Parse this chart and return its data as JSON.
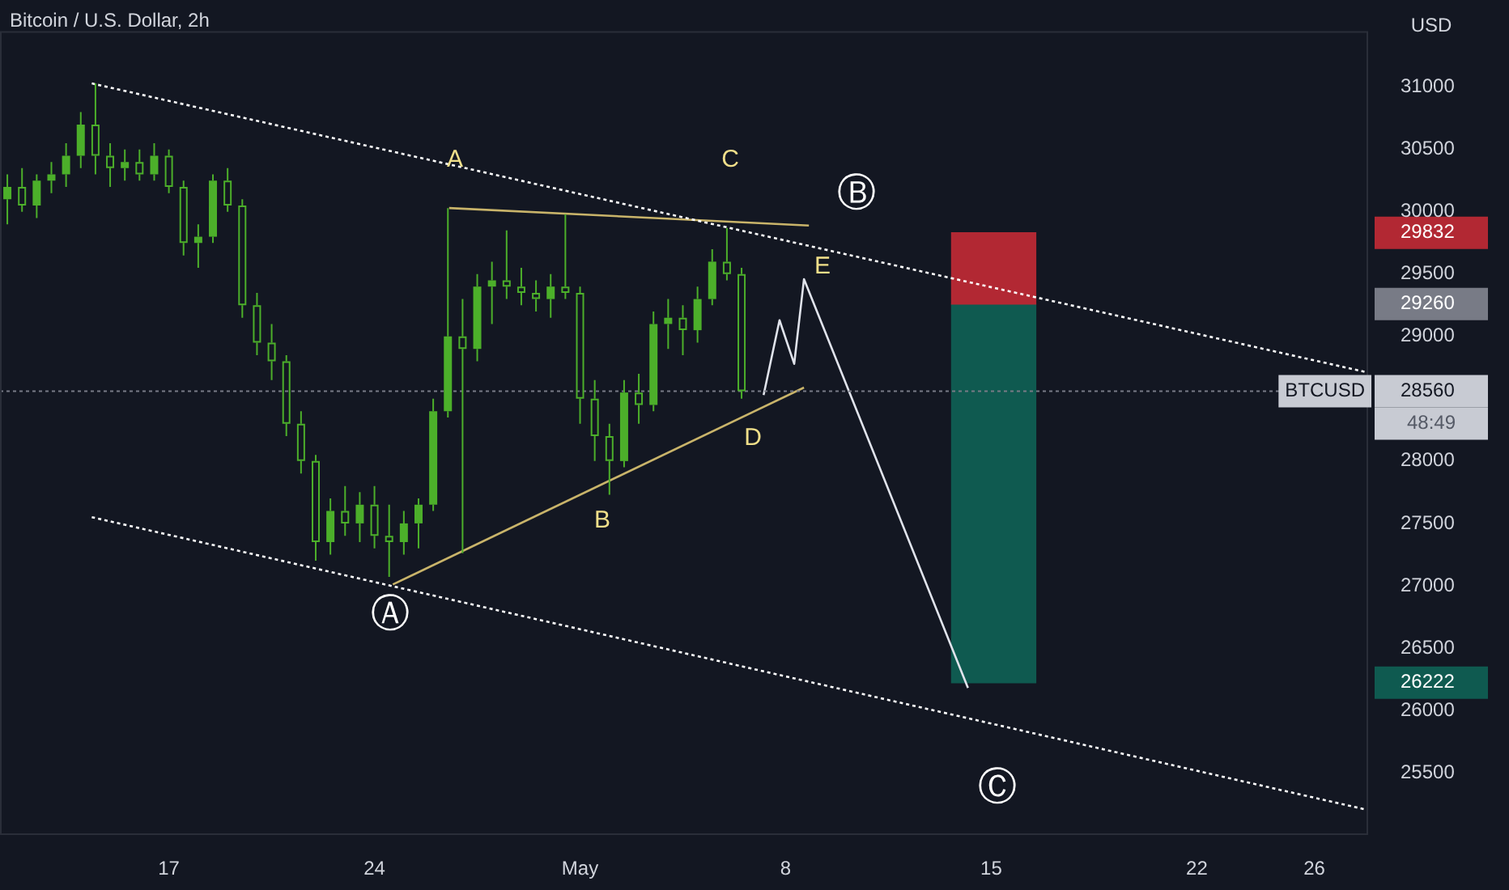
{
  "chart_data": {
    "type": "candlestick",
    "title": "Bitcoin / U.S. Dollar, 2h",
    "ylabel": "USD",
    "color": "#4caf2a",
    "x": [
      "--04-11T12:00",
      "--04-12T00:00",
      "--04-12T12:00",
      "--04-13T00:00",
      "--04-13T12:00",
      "--04-14T00:00",
      "--04-14T12:00",
      "--04-15T00:00",
      "--04-15T12:00",
      "--04-16T00:00",
      "--04-16T12:00",
      "--04-17T00:00",
      "--04-17T12:00",
      "--04-18T00:00",
      "--04-18T12:00",
      "--04-19T00:00",
      "--04-19T12:00",
      "--04-20T00:00",
      "--04-20T12:00",
      "--04-21T00:00",
      "--04-21T12:00",
      "--04-22T00:00",
      "--04-22T12:00",
      "--04-23T00:00",
      "--04-23T12:00",
      "--04-24T00:00",
      "--04-24T12:00",
      "--04-25T00:00",
      "--04-25T12:00",
      "--04-26T00:00",
      "--04-26T12:00",
      "--04-27T00:00",
      "--04-27T12:00",
      "--04-28T00:00",
      "--04-28T12:00",
      "--04-29T00:00",
      "--04-29T12:00",
      "--04-30T00:00",
      "--04-30T12:00",
      "--05-01T00:00",
      "--05-01T12:00",
      "--05-02T00:00",
      "--05-02T12:00",
      "--05-03T00:00",
      "--05-03T12:00",
      "--05-04T00:00",
      "--05-04T12:00",
      "--05-05T00:00",
      "--05-05T12:00",
      "--05-06T00:00",
      "--05-06T12:00"
    ],
    "ohlc": [
      [
        30100,
        30300,
        29900,
        30200
      ],
      [
        30200,
        30350,
        30000,
        30050
      ],
      [
        30050,
        30300,
        29950,
        30250
      ],
      [
        30250,
        30400,
        30150,
        30300
      ],
      [
        30300,
        30550,
        30200,
        30450
      ],
      [
        30450,
        30800,
        30350,
        30700
      ],
      [
        30700,
        31030,
        30300,
        30450
      ],
      [
        30450,
        30550,
        30200,
        30350
      ],
      [
        30350,
        30500,
        30250,
        30400
      ],
      [
        30400,
        30500,
        30250,
        30300
      ],
      [
        30300,
        30550,
        30250,
        30450
      ],
      [
        30450,
        30500,
        30150,
        30200
      ],
      [
        30200,
        30250,
        29650,
        29750
      ],
      [
        29750,
        29900,
        29550,
        29800
      ],
      [
        29800,
        30300,
        29750,
        30250
      ],
      [
        30250,
        30350,
        30000,
        30050
      ],
      [
        30050,
        30100,
        29150,
        29250
      ],
      [
        29250,
        29350,
        28850,
        28950
      ],
      [
        28950,
        29100,
        28650,
        28800
      ],
      [
        28800,
        28850,
        28200,
        28300
      ],
      [
        28300,
        28400,
        27900,
        28000
      ],
      [
        28000,
        28050,
        27200,
        27350
      ],
      [
        27350,
        27700,
        27250,
        27600
      ],
      [
        27600,
        27800,
        27400,
        27500
      ],
      [
        27500,
        27750,
        27350,
        27650
      ],
      [
        27650,
        27800,
        27300,
        27400
      ],
      [
        27400,
        27650,
        27070,
        27350
      ],
      [
        27350,
        27600,
        27250,
        27500
      ],
      [
        27500,
        27700,
        27300,
        27650
      ],
      [
        27650,
        28500,
        27600,
        28400
      ],
      [
        28400,
        30030,
        28350,
        29000
      ],
      [
        29000,
        29300,
        27260,
        28900
      ],
      [
        28900,
        29500,
        28800,
        29400
      ],
      [
        29400,
        29600,
        29100,
        29450
      ],
      [
        29450,
        29850,
        29300,
        29400
      ],
      [
        29400,
        29550,
        29250,
        29350
      ],
      [
        29350,
        29450,
        29200,
        29300
      ],
      [
        29300,
        29500,
        29150,
        29400
      ],
      [
        29400,
        29980,
        29300,
        29350
      ],
      [
        29350,
        29400,
        28300,
        28500
      ],
      [
        28500,
        28650,
        28000,
        28200
      ],
      [
        28200,
        28300,
        27730,
        28000
      ],
      [
        28000,
        28650,
        27950,
        28550
      ],
      [
        28550,
        28700,
        28300,
        28450
      ],
      [
        28450,
        29200,
        28400,
        29100
      ],
      [
        29100,
        29300,
        28900,
        29150
      ],
      [
        29150,
        29250,
        28850,
        29050
      ],
      [
        29050,
        29400,
        28950,
        29300
      ],
      [
        29300,
        29700,
        29250,
        29600
      ],
      [
        29600,
        29870,
        29450,
        29500
      ],
      [
        29500,
        29550,
        28500,
        28560
      ]
    ],
    "series": [
      {
        "type": "line",
        "color": "#ffffff",
        "line_style": "dotted",
        "x": [
          "--04-14T09:00",
          "--05-27T20:00"
        ],
        "values": [
          31030,
          28710
        ]
      },
      {
        "type": "line",
        "color": "#ffffff",
        "line_style": "dotted",
        "x": [
          "--04-14T09:00",
          "--05-27T20:00"
        ],
        "values": [
          27550,
          25200
        ]
      },
      {
        "type": "line",
        "color": "#c9b46a",
        "line_style": "solid",
        "x": [
          "--04-26T13:00",
          "--05-08T19:00"
        ],
        "values": [
          30030,
          29890
        ]
      },
      {
        "type": "line",
        "color": "#c9b46a",
        "line_style": "solid",
        "x": [
          "--04-24T15:00",
          "--05-08T15:00"
        ],
        "values": [
          27010,
          28590
        ]
      },
      {
        "type": "line",
        "color": "#e0e3eb",
        "line_style": "solid",
        "x": [
          "--05-07T06:00",
          "--05-07T19:00",
          "--05-08T07:00",
          "--05-08T15:00",
          "--05-14T05:00"
        ],
        "values": [
          28530,
          29130,
          28780,
          29460,
          26180
        ]
      },
      {
        "type": "bar",
        "colors": [
          "#0f5a50",
          "#b22833"
        ],
        "x": [
          "--05-15T02:00",
          "--05-15T02:00"
        ],
        "base": [
          26222,
          29260
        ],
        "values": [
          3038,
          572
        ]
      }
    ],
    "ref_lines": [
      {
        "axis": "y",
        "value": 28560,
        "label": "BTCUSD",
        "color": "#787b86",
        "line_style": "dotted"
      }
    ],
    "annotations": [
      "A",
      "C",
      "B",
      "D",
      "E",
      "Ⓐ",
      "Ⓑ",
      "Ⓒ",
      "48:49"
    ],
    "xlim": [
      "--04-11T06:00",
      "--05-27T20:00"
    ],
    "xticks": [
      {
        "value": "--04-17",
        "label": "17"
      },
      {
        "value": "--04-24",
        "label": "24"
      },
      {
        "value": "--05-01",
        "label": "May"
      },
      {
        "value": "--05-08",
        "label": "8"
      },
      {
        "value": "--05-15",
        "label": "15"
      },
      {
        "value": "--05-22",
        "label": "22"
      },
      {
        "value": "--05-26",
        "label": "26"
      }
    ],
    "ylim": [
      25000,
      31450
    ],
    "yticks": [
      25500,
      26000,
      26222,
      26500,
      27000,
      27500,
      28000,
      28560,
      29000,
      29260,
      29500,
      29832,
      30000,
      30500,
      31000
    ]
  }
}
